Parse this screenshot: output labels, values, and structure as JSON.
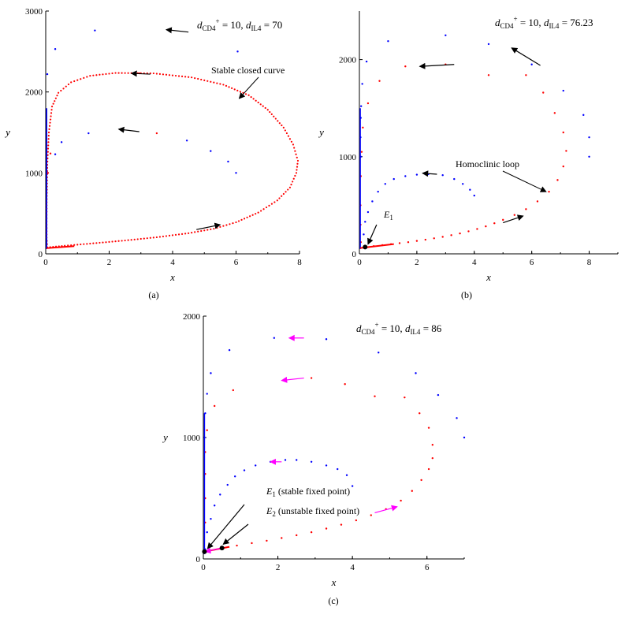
{
  "chart_data": [
    {
      "type": "scatter",
      "panel_label": "(a)",
      "param_text": {
        "d1": "d",
        "s1": "CD4",
        "sup1": "+",
        "eq1": " = 10, ",
        "d2": "d",
        "s2": "IL4",
        "eq2": " = 70"
      },
      "xlabel": "x",
      "ylabel": "y",
      "xlim": [
        0,
        8
      ],
      "ylim": [
        0,
        3000
      ],
      "xticks": [
        0,
        2,
        4,
        6,
        8
      ],
      "yticks": [
        0,
        1000,
        2000,
        3000
      ],
      "arrow_color": "#000000",
      "series": [
        {
          "color": "#ff0000",
          "kind": "closed-curve",
          "points": [
            [
              0.05,
              80
            ],
            [
              0.6,
              100
            ],
            [
              1.5,
              130
            ],
            [
              2.5,
              165
            ],
            [
              3.5,
              205
            ],
            [
              4.5,
              255
            ],
            [
              5.3,
              310
            ],
            [
              6.0,
              390
            ],
            [
              6.7,
              510
            ],
            [
              7.3,
              660
            ],
            [
              7.7,
              820
            ],
            [
              7.9,
              1000
            ],
            [
              7.95,
              1150
            ],
            [
              7.8,
              1350
            ],
            [
              7.5,
              1560
            ],
            [
              7.0,
              1780
            ],
            [
              6.4,
              1960
            ],
            [
              5.6,
              2090
            ],
            [
              4.6,
              2180
            ],
            [
              3.4,
              2230
            ],
            [
              2.2,
              2235
            ],
            [
              1.4,
              2200
            ],
            [
              0.8,
              2120
            ],
            [
              0.4,
              1990
            ],
            [
              0.2,
              1820
            ],
            [
              0.1,
              1500
            ],
            [
              0.05,
              1100
            ],
            [
              0.03,
              600
            ],
            [
              0.03,
              200
            ],
            [
              0.05,
              80
            ]
          ]
        },
        {
          "color": "#0000ff",
          "kind": "dots",
          "points": [
            [
              1.55,
              2760
            ],
            [
              0.3,
              2530
            ],
            [
              6.05,
              2500
            ],
            [
              0.05,
              2220
            ],
            [
              0.5,
              1380
            ],
            [
              1.35,
              1490
            ],
            [
              4.45,
              1400
            ],
            [
              5.2,
              1270
            ],
            [
              5.75,
              1140
            ],
            [
              6.0,
              1000
            ],
            [
              0.3,
              1230
            ]
          ]
        },
        {
          "color": "#ff0000",
          "kind": "dots",
          "points": [
            [
              2.95,
              2230
            ],
            [
              3.5,
              1490
            ],
            [
              0.15,
              1240
            ],
            [
              0.07,
              1000
            ]
          ]
        }
      ],
      "arrows": [
        [
          4.5,
          2740,
          3.8,
          2770
        ],
        [
          3.3,
          2220,
          2.7,
          2230
        ],
        [
          2.95,
          1510,
          2.3,
          1540
        ],
        [
          4.75,
          300,
          5.5,
          360
        ]
      ],
      "annotation": {
        "text": "Stable closed curve",
        "pointer_to": [
          6.1,
          1920
        ]
      }
    },
    {
      "type": "scatter",
      "panel_label": "(b)",
      "param_text": {
        "d1": "d",
        "s1": "CD4",
        "sup1": "+",
        "eq1": " = 10, ",
        "d2": "d",
        "s2": "IL4",
        "eq2": " = 76.23"
      },
      "xlabel": "x",
      "ylabel": "y",
      "xlim": [
        0,
        9
      ],
      "ylim": [
        0,
        2500
      ],
      "xticks": [
        0,
        2,
        4,
        6,
        8
      ],
      "yticks": [
        0,
        1000,
        2000
      ],
      "arrow_color": "#000000",
      "series": [
        {
          "color": "#ff0000",
          "kind": "dots",
          "points": [
            [
              0.2,
              70
            ],
            [
              0.5,
              80
            ],
            [
              0.8,
              90
            ],
            [
              1.1,
              100
            ],
            [
              1.4,
              110
            ],
            [
              1.7,
              120
            ],
            [
              2.0,
              133
            ],
            [
              2.3,
              146
            ],
            [
              2.6,
              160
            ],
            [
              2.9,
              175
            ],
            [
              3.2,
              192
            ],
            [
              3.5,
              210
            ],
            [
              3.8,
              232
            ],
            [
              4.1,
              256
            ],
            [
              4.4,
              283
            ],
            [
              4.7,
              315
            ],
            [
              5.0,
              350
            ],
            [
              5.4,
              400
            ],
            [
              5.8,
              460
            ],
            [
              6.2,
              540
            ],
            [
              6.6,
              640
            ],
            [
              6.9,
              760
            ],
            [
              7.1,
              900
            ],
            [
              7.2,
              1060
            ],
            [
              7.1,
              1250
            ],
            [
              6.8,
              1450
            ],
            [
              6.4,
              1660
            ],
            [
              5.8,
              1840
            ],
            [
              4.5,
              1840
            ],
            [
              3.0,
              1950
            ],
            [
              1.6,
              1930
            ],
            [
              0.7,
              1780
            ],
            [
              0.3,
              1550
            ],
            [
              0.12,
              1300
            ],
            [
              0.08,
              1050
            ],
            [
              0.05,
              800
            ],
            [
              0.04,
              500
            ],
            [
              0.04,
              300
            ],
            [
              0.05,
              120
            ]
          ]
        },
        {
          "color": "#0000ff",
          "kind": "dots",
          "points": [
            [
              0.2,
              70
            ],
            [
              0.15,
              200
            ],
            [
              0.2,
              330
            ],
            [
              0.3,
              430
            ],
            [
              0.45,
              540
            ],
            [
              0.65,
              640
            ],
            [
              0.9,
              720
            ],
            [
              1.2,
              770
            ],
            [
              1.6,
              800
            ],
            [
              2.0,
              815
            ],
            [
              2.4,
              820
            ],
            [
              2.9,
              810
            ],
            [
              3.3,
              770
            ],
            [
              3.6,
              720
            ],
            [
              3.85,
              660
            ],
            [
              4.0,
              600
            ],
            [
              0.05,
              1000
            ],
            [
              0.04,
              1200
            ],
            [
              0.05,
              1400
            ],
            [
              0.06,
              1520
            ],
            [
              0.1,
              1750
            ],
            [
              0.25,
              1980
            ],
            [
              1.0,
              2190
            ],
            [
              3.0,
              2250
            ],
            [
              4.5,
              2160
            ],
            [
              6.0,
              1950
            ],
            [
              7.1,
              1680
            ],
            [
              7.8,
              1430
            ],
            [
              8.0,
              1200
            ],
            [
              8.0,
              1000
            ]
          ]
        }
      ],
      "fixed_points": [
        {
          "x": 0.2,
          "y": 70,
          "label": "E",
          "label_sub": "1"
        }
      ],
      "arrows": [
        [
          3.3,
          1950,
          2.1,
          1930
        ],
        [
          6.3,
          1940,
          5.3,
          2120
        ],
        [
          2.7,
          820,
          2.2,
          830
        ],
        [
          5.0,
          320,
          5.7,
          390
        ],
        [
          0.6,
          300,
          0.3,
          100
        ]
      ],
      "annotation": {
        "text": "Homoclinic loop",
        "pointer_to": [
          6.5,
          640
        ]
      }
    },
    {
      "type": "scatter",
      "panel_label": "(c)",
      "param_text": {
        "d1": "d",
        "s1": "CD4",
        "sup1": "+",
        "eq1": " = 10, ",
        "d2": "d",
        "s2": "IL4",
        "eq2": " = 86"
      },
      "xlabel": "x",
      "ylabel": "y",
      "xlim": [
        0,
        7
      ],
      "ylim": [
        0,
        2000
      ],
      "xticks": [
        0,
        2,
        4,
        6
      ],
      "yticks": [
        0,
        1000,
        2000
      ],
      "arrow_color": "#ff00ff",
      "series": [
        {
          "color": "#ff0000",
          "kind": "dots",
          "points": [
            [
              0.5,
              90
            ],
            [
              0.9,
              110
            ],
            [
              1.3,
              130
            ],
            [
              1.7,
              150
            ],
            [
              2.1,
              172
            ],
            [
              2.5,
              195
            ],
            [
              2.9,
              220
            ],
            [
              3.3,
              250
            ],
            [
              3.7,
              282
            ],
            [
              4.1,
              318
            ],
            [
              4.5,
              360
            ],
            [
              4.9,
              410
            ],
            [
              5.3,
              480
            ],
            [
              5.6,
              560
            ],
            [
              5.85,
              650
            ],
            [
              6.05,
              740
            ],
            [
              6.15,
              830
            ],
            [
              6.15,
              940
            ],
            [
              6.05,
              1080
            ],
            [
              5.8,
              1200
            ],
            [
              5.4,
              1330
            ],
            [
              4.6,
              1340
            ],
            [
              3.8,
              1440
            ],
            [
              2.9,
              1490
            ],
            [
              2.2,
              1470
            ],
            [
              0.8,
              1390
            ],
            [
              0.3,
              1260
            ],
            [
              0.1,
              1060
            ],
            [
              0.05,
              880
            ],
            [
              0.05,
              700
            ],
            [
              0.05,
              500
            ],
            [
              0.05,
              300
            ]
          ]
        },
        {
          "color": "#0000ff",
          "kind": "dots",
          "points": [
            [
              0.05,
              80
            ],
            [
              0.1,
              220
            ],
            [
              0.2,
              330
            ],
            [
              0.3,
              440
            ],
            [
              0.45,
              530
            ],
            [
              0.65,
              610
            ],
            [
              0.85,
              680
            ],
            [
              1.1,
              730
            ],
            [
              1.4,
              770
            ],
            [
              1.8,
              800
            ],
            [
              2.2,
              815
            ],
            [
              2.5,
              815
            ],
            [
              2.9,
              800
            ],
            [
              3.3,
              770
            ],
            [
              3.6,
              740
            ],
            [
              3.85,
              690
            ],
            [
              4.0,
              600
            ],
            [
              0.03,
              1000
            ],
            [
              0.05,
              1200
            ],
            [
              0.1,
              1360
            ],
            [
              0.2,
              1530
            ],
            [
              0.7,
              1720
            ],
            [
              1.9,
              1820
            ],
            [
              3.3,
              1810
            ],
            [
              4.7,
              1700
            ],
            [
              5.7,
              1530
            ],
            [
              6.3,
              1350
            ],
            [
              6.8,
              1160
            ],
            [
              7.0,
              1000
            ]
          ]
        }
      ],
      "fixed_points": [
        {
          "x": 0.03,
          "y": 60,
          "label": "E",
          "label_sub": "1",
          "desc": " (stable fixed point)"
        },
        {
          "x": 0.5,
          "y": 90,
          "label": "E",
          "label_sub": "2",
          "desc": " (unstable fixed point)"
        }
      ],
      "arrows": [
        [
          2.7,
          1820,
          2.3,
          1820
        ],
        [
          2.7,
          1490,
          2.1,
          1470
        ],
        [
          2.1,
          800,
          1.8,
          800
        ],
        [
          4.6,
          380,
          5.2,
          430
        ],
        [
          0.5,
          90,
          0.05,
          60
        ]
      ],
      "label_pointers": [
        [
          0.03,
          60
        ],
        [
          0.45,
          95
        ]
      ]
    }
  ]
}
